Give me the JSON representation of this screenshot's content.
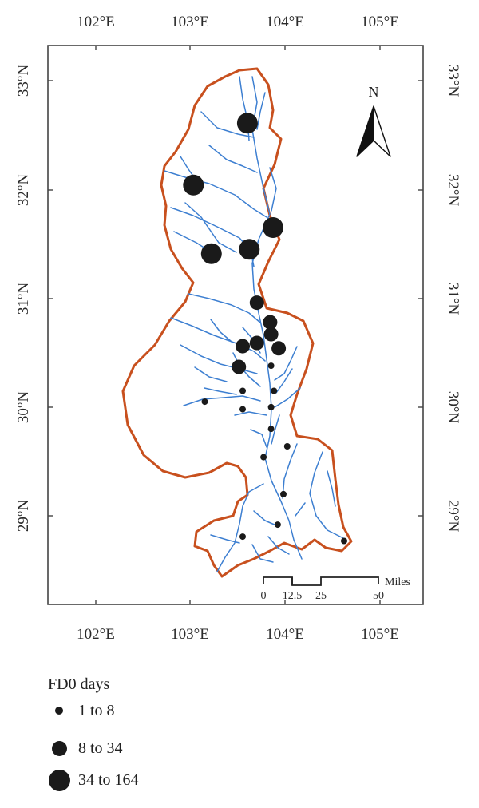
{
  "map": {
    "top_lon_labels": [
      "102°E",
      "103°E",
      "104°E",
      "105°E"
    ],
    "bottom_lon_labels": [
      "102°E",
      "103°E",
      "104°E",
      "105°E"
    ],
    "left_lat_labels": [
      "33°N",
      "32°N",
      "31°N",
      "30°N",
      "29°N"
    ],
    "right_lat_labels": [
      "33°N",
      "32°N",
      "31°N",
      "30°N",
      "29°N"
    ],
    "north_arrow_label": "N",
    "scale_bar": {
      "unit": "Miles",
      "ticks": [
        "0",
        "12.5",
        "25",
        "50"
      ]
    },
    "colors": {
      "basin_outline": "#c8501e",
      "rivers": "#3d7fd1",
      "stations": "#1a1a1a"
    }
  },
  "legend": {
    "title": "FD0 days",
    "classes": [
      {
        "label": "1 to 8"
      },
      {
        "label": "8 to 34"
      },
      {
        "label": "34 to 164"
      }
    ]
  },
  "stations": [
    {
      "lon": 103.6,
      "lat": 32.61,
      "class": 3
    },
    {
      "lon": 103.03,
      "lat": 32.04,
      "class": 3
    },
    {
      "lon": 103.87,
      "lat": 31.65,
      "class": 3
    },
    {
      "lon": 103.22,
      "lat": 31.41,
      "class": 3
    },
    {
      "lon": 103.62,
      "lat": 31.45,
      "class": 3
    },
    {
      "lon": 103.7,
      "lat": 30.96,
      "class": 2
    },
    {
      "lon": 103.84,
      "lat": 30.78,
      "class": 2
    },
    {
      "lon": 103.85,
      "lat": 30.67,
      "class": 2
    },
    {
      "lon": 103.55,
      "lat": 30.56,
      "class": 2
    },
    {
      "lon": 103.7,
      "lat": 30.59,
      "class": 2
    },
    {
      "lon": 103.93,
      "lat": 30.54,
      "class": 2
    },
    {
      "lon": 103.51,
      "lat": 30.37,
      "class": 2
    },
    {
      "lon": 103.85,
      "lat": 30.38,
      "class": 1
    },
    {
      "lon": 103.55,
      "lat": 30.15,
      "class": 1
    },
    {
      "lon": 103.88,
      "lat": 30.15,
      "class": 1
    },
    {
      "lon": 103.15,
      "lat": 30.05,
      "class": 1
    },
    {
      "lon": 103.55,
      "lat": 29.98,
      "class": 1
    },
    {
      "lon": 103.85,
      "lat": 30.0,
      "class": 1
    },
    {
      "lon": 103.85,
      "lat": 29.8,
      "class": 1
    },
    {
      "lon": 104.02,
      "lat": 29.64,
      "class": 1
    },
    {
      "lon": 103.77,
      "lat": 29.54,
      "class": 1
    },
    {
      "lon": 103.98,
      "lat": 29.2,
      "class": 1
    },
    {
      "lon": 103.92,
      "lat": 28.92,
      "class": 1
    },
    {
      "lon": 103.55,
      "lat": 28.81,
      "class": 1
    },
    {
      "lon": 104.62,
      "lat": 28.77,
      "class": 1
    }
  ]
}
